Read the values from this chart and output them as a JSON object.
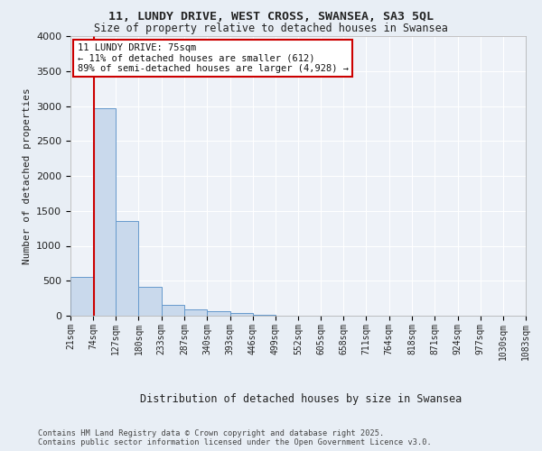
{
  "title1": "11, LUNDY DRIVE, WEST CROSS, SWANSEA, SA3 5QL",
  "title2": "Size of property relative to detached houses in Swansea",
  "xlabel": "Distribution of detached houses by size in Swansea",
  "ylabel": "Number of detached properties",
  "footer1": "Contains HM Land Registry data © Crown copyright and database right 2025.",
  "footer2": "Contains public sector information licensed under the Open Government Licence v3.0.",
  "annotation_line1": "11 LUNDY DRIVE: 75sqm",
  "annotation_line2": "← 11% of detached houses are smaller (612)",
  "annotation_line3": "89% of semi-detached houses are larger (4,928) →",
  "bar_color": "#c9d9ec",
  "bar_edge_color": "#6699cc",
  "vline_color": "#cc0000",
  "annotation_box_color": "#cc0000",
  "bg_color": "#e8eef5",
  "plot_bg_color": "#eef2f8",
  "grid_color": "#ffffff",
  "bins": [
    21,
    74,
    127,
    180,
    233,
    287,
    340,
    393,
    446,
    499,
    552,
    605,
    658,
    711,
    764,
    818,
    871,
    924,
    977,
    1030,
    1083
  ],
  "counts": [
    560,
    2970,
    1350,
    410,
    160,
    90,
    60,
    40,
    10,
    0,
    0,
    0,
    0,
    0,
    0,
    0,
    0,
    0,
    0,
    0
  ],
  "vline_x": 75,
  "ylim": [
    0,
    4000
  ],
  "yticks": [
    0,
    500,
    1000,
    1500,
    2000,
    2500,
    3000,
    3500,
    4000
  ]
}
